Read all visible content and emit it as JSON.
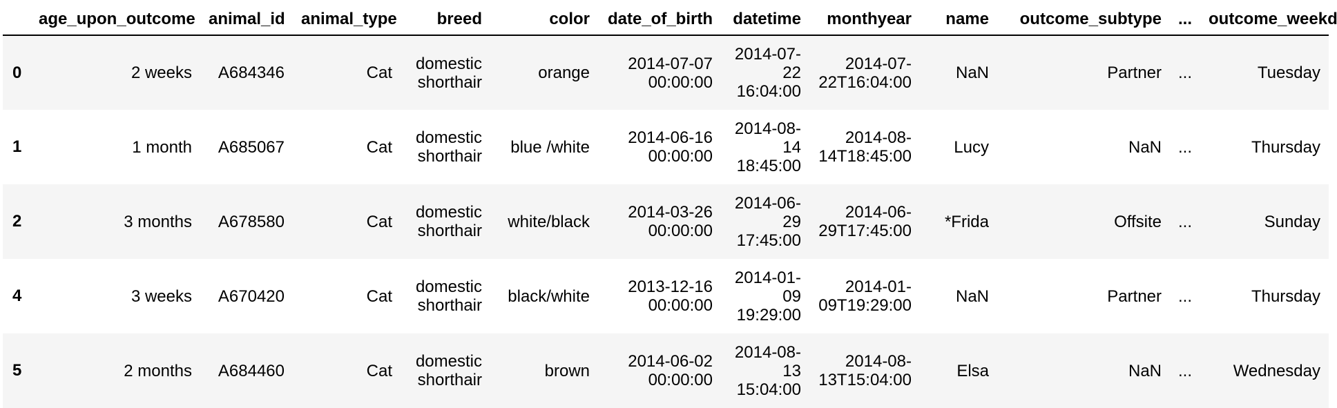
{
  "columns": [
    "",
    "age_upon_outcome",
    "animal_id",
    "animal_type",
    "breed",
    "color",
    "date_of_birth",
    "datetime",
    "monthyear",
    "name",
    "outcome_subtype",
    "...",
    "outcome_weekday"
  ],
  "rows": [
    {
      "index": "0",
      "age_upon_outcome": "2 weeks",
      "animal_id": "A684346",
      "animal_type": "Cat",
      "breed": "domestic\nshorthair",
      "color": "orange",
      "date_of_birth": "2014-07-07\n00:00:00",
      "datetime": "2014-07-\n22\n16:04:00",
      "monthyear": "2014-07-\n22T16:04:00",
      "name": "NaN",
      "outcome_subtype": "Partner",
      "ellipsis": "...",
      "outcome_weekday": "Tuesday"
    },
    {
      "index": "1",
      "age_upon_outcome": "1 month",
      "animal_id": "A685067",
      "animal_type": "Cat",
      "breed": "domestic\nshorthair",
      "color": "blue /white",
      "date_of_birth": "2014-06-16\n00:00:00",
      "datetime": "2014-08-\n14\n18:45:00",
      "monthyear": "2014-08-\n14T18:45:00",
      "name": "Lucy",
      "outcome_subtype": "NaN",
      "ellipsis": "...",
      "outcome_weekday": "Thursday"
    },
    {
      "index": "2",
      "age_upon_outcome": "3 months",
      "animal_id": "A678580",
      "animal_type": "Cat",
      "breed": "domestic\nshorthair",
      "color": "white/black",
      "date_of_birth": "2014-03-26\n00:00:00",
      "datetime": "2014-06-\n29\n17:45:00",
      "monthyear": "2014-06-\n29T17:45:00",
      "name": "*Frida",
      "outcome_subtype": "Offsite",
      "ellipsis": "...",
      "outcome_weekday": "Sunday"
    },
    {
      "index": "4",
      "age_upon_outcome": "3 weeks",
      "animal_id": "A670420",
      "animal_type": "Cat",
      "breed": "domestic\nshorthair",
      "color": "black/white",
      "date_of_birth": "2013-12-16\n00:00:00",
      "datetime": "2014-01-\n09\n19:29:00",
      "monthyear": "2014-01-\n09T19:29:00",
      "name": "NaN",
      "outcome_subtype": "Partner",
      "ellipsis": "...",
      "outcome_weekday": "Thursday"
    },
    {
      "index": "5",
      "age_upon_outcome": "2 months",
      "animal_id": "A684460",
      "animal_type": "Cat",
      "breed": "domestic\nshorthair",
      "color": "brown",
      "date_of_birth": "2014-06-02\n00:00:00",
      "datetime": "2014-08-\n13\n15:04:00",
      "monthyear": "2014-08-\n13T15:04:00",
      "name": "Elsa",
      "outcome_subtype": "NaN",
      "ellipsis": "...",
      "outcome_weekday": "Wednesday"
    }
  ]
}
